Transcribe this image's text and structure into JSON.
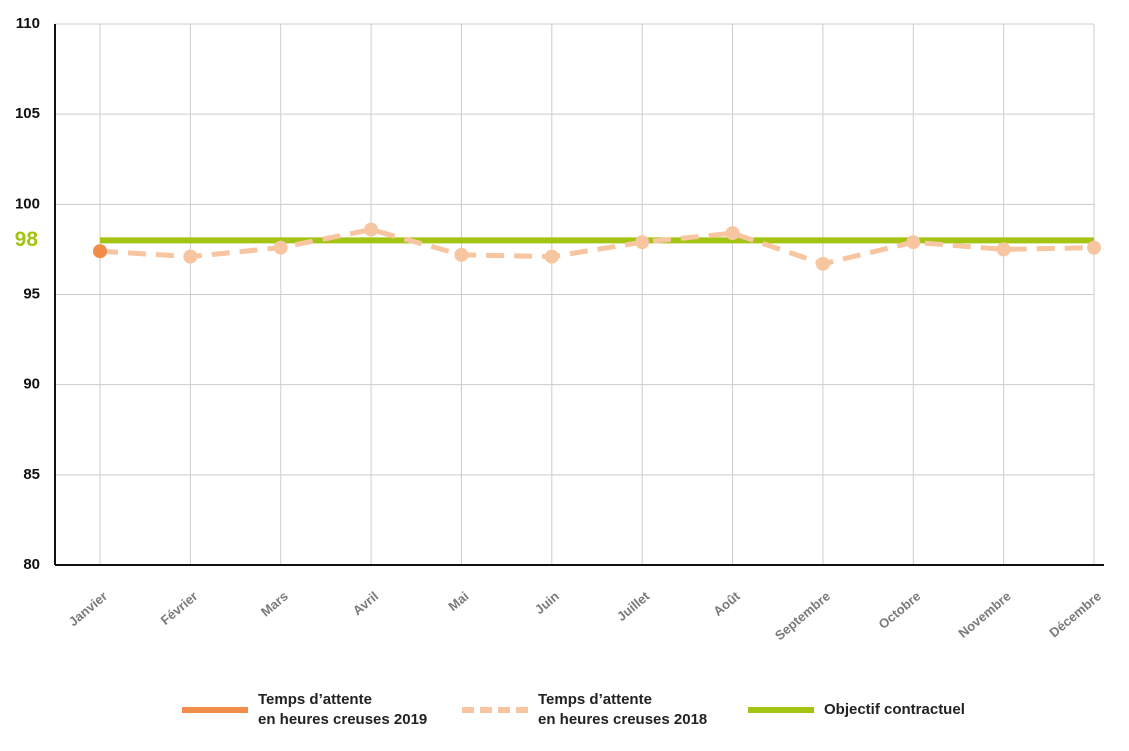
{
  "chart_data": {
    "type": "line",
    "categories": [
      "Janvier",
      "Février",
      "Mars",
      "Avril",
      "Mai",
      "Juin",
      "Juillet",
      "Août",
      "Septembre",
      "Octobre",
      "Novembre",
      "Décembre"
    ],
    "series": [
      {
        "name": "Temps d’attente\nen heures creuses 2019",
        "color": "#f28c4a",
        "values": [
          97.4,
          null,
          null,
          null,
          null,
          null,
          null,
          null,
          null,
          null,
          null,
          null
        ]
      },
      {
        "name": "Temps d’attente\nen heures creuses 2018",
        "color": "#f7c59f",
        "dashed": true,
        "values": [
          97.4,
          97.1,
          97.6,
          98.6,
          97.2,
          97.1,
          97.9,
          98.4,
          96.7,
          97.9,
          97.5,
          97.6
        ]
      },
      {
        "name": "Objectif contractuel",
        "color": "#a3c413",
        "values": [
          98,
          98,
          98,
          98,
          98,
          98,
          98,
          98,
          98,
          98,
          98,
          98
        ]
      }
    ],
    "ylim": [
      80,
      110
    ],
    "yticks": [
      80,
      85,
      90,
      95,
      100,
      105,
      110
    ],
    "grid": true
  }
}
